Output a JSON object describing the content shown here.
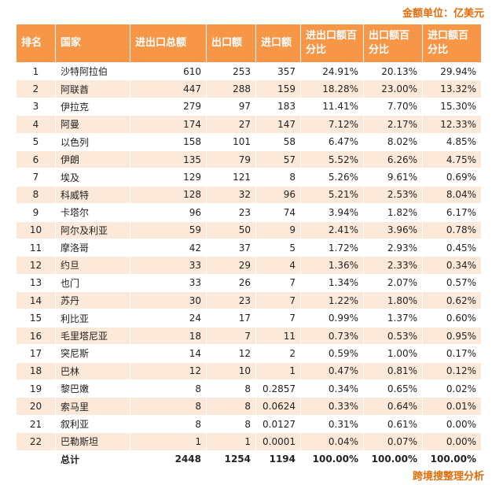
{
  "note": "金额单位：亿美元",
  "table": {
    "headers": [
      "排名",
      "国家",
      "进出口总额",
      "出口额",
      "进口额",
      "进出口额百分比",
      "出口额百分比",
      "进口额百分比"
    ],
    "rows": [
      [
        "1",
        "沙特阿拉伯",
        "610",
        "253",
        "357",
        "24.91%",
        "20.13%",
        "29.94%"
      ],
      [
        "2",
        "阿联酋",
        "447",
        "288",
        "159",
        "18.28%",
        "23.00%",
        "13.32%"
      ],
      [
        "3",
        "伊拉克",
        "279",
        "97",
        "183",
        "11.41%",
        "7.70%",
        "15.30%"
      ],
      [
        "4",
        "阿曼",
        "174",
        "27",
        "147",
        "7.12%",
        "2.17%",
        "12.33%"
      ],
      [
        "5",
        "以色列",
        "158",
        "101",
        "58",
        "6.47%",
        "8.02%",
        "4.85%"
      ],
      [
        "6",
        "伊朗",
        "135",
        "79",
        "57",
        "5.52%",
        "6.26%",
        "4.75%"
      ],
      [
        "7",
        "埃及",
        "129",
        "121",
        "8",
        "5.26%",
        "9.61%",
        "0.69%"
      ],
      [
        "8",
        "科威特",
        "128",
        "32",
        "96",
        "5.21%",
        "2.53%",
        "8.04%"
      ],
      [
        "9",
        "卡塔尔",
        "96",
        "23",
        "74",
        "3.94%",
        "1.82%",
        "6.17%"
      ],
      [
        "10",
        "阿尔及利亚",
        "59",
        "50",
        "9",
        "2.41%",
        "3.96%",
        "0.78%"
      ],
      [
        "11",
        "摩洛哥",
        "42",
        "37",
        "5",
        "1.72%",
        "2.93%",
        "0.45%"
      ],
      [
        "12",
        "约旦",
        "33",
        "29",
        "4",
        "1.36%",
        "2.33%",
        "0.34%"
      ],
      [
        "13",
        "也门",
        "33",
        "26",
        "7",
        "1.34%",
        "2.07%",
        "0.57%"
      ],
      [
        "14",
        "苏丹",
        "30",
        "23",
        "7",
        "1.22%",
        "1.80%",
        "0.62%"
      ],
      [
        "15",
        "利比亚",
        "24",
        "17",
        "7",
        "0.99%",
        "1.37%",
        "0.60%"
      ],
      [
        "16",
        "毛里塔尼亚",
        "18",
        "7",
        "11",
        "0.73%",
        "0.53%",
        "0.95%"
      ],
      [
        "17",
        "突尼斯",
        "14",
        "12",
        "2",
        "0.59%",
        "1.00%",
        "0.17%"
      ],
      [
        "18",
        "巴林",
        "12",
        "10",
        "1",
        "0.47%",
        "0.81%",
        "0.12%"
      ],
      [
        "19",
        "黎巴嫩",
        "8",
        "8",
        "0.2857",
        "0.34%",
        "0.65%",
        "0.02%"
      ],
      [
        "20",
        "索马里",
        "8",
        "8",
        "0.0624",
        "0.33%",
        "0.64%",
        "0.01%"
      ],
      [
        "21",
        "叙利亚",
        "8",
        "8",
        "0.0127",
        "0.31%",
        "0.61%",
        "0.00%"
      ],
      [
        "22",
        "巴勒斯坦",
        "1",
        "1",
        "0.0001",
        "0.04%",
        "0.07%",
        "0.00%"
      ]
    ],
    "total": {
      "label": "总计",
      "values": [
        "2448",
        "1254",
        "1194",
        "100.00%",
        "100.00%",
        "100.00%"
      ]
    }
  },
  "footer": "跨境搜整理分析"
}
